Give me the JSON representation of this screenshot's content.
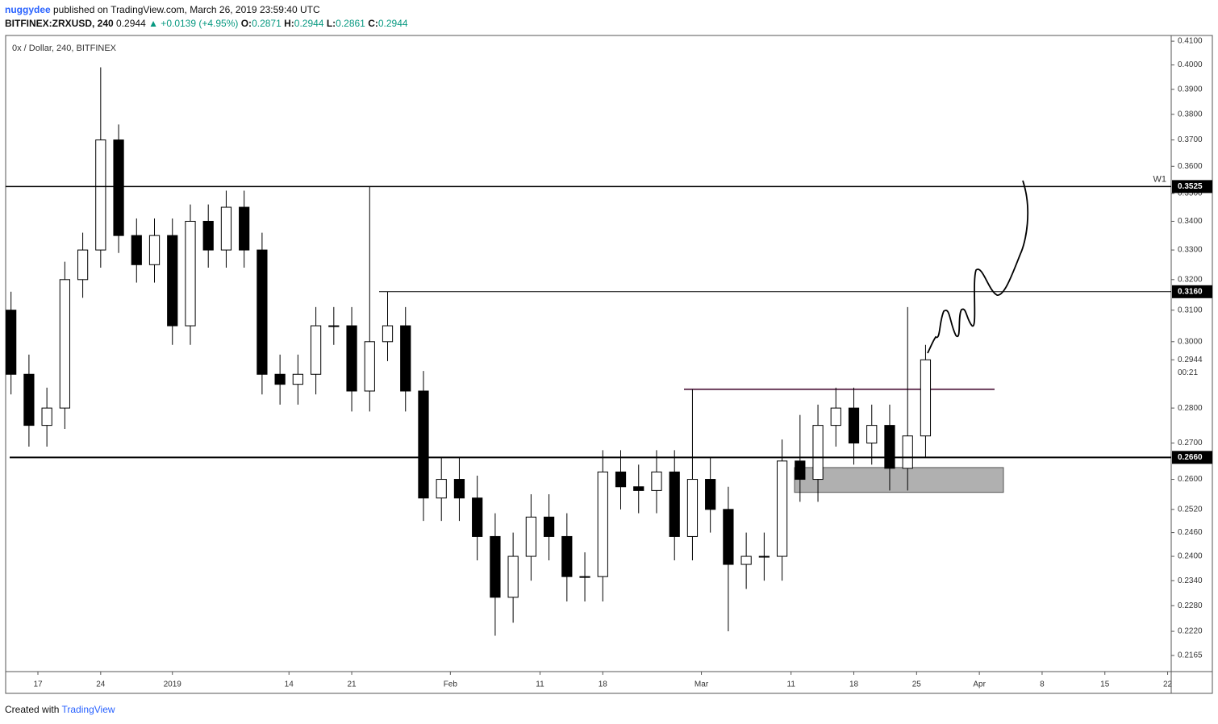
{
  "header": {
    "author": "nuggydee",
    "published": " published on TradingView.com, March 26, 2019 23:59:40 UTC",
    "symbol": "BITFINEX:ZRXUSD, 240",
    "last": "0.2944",
    "change": "▲ +0.0139 (+4.95%)",
    "o_label": "O:",
    "o": "0.2871",
    "h_label": "H:",
    "h": "0.2944",
    "l_label": "L:",
    "l": "0.2861",
    "c_label": "C:",
    "c": "0.2944"
  },
  "footer": {
    "created": "Created with",
    "brand": "TradingView"
  },
  "chart_data": {
    "type": "candlestick",
    "title": "0x / Dollar, 240, BITFINEX",
    "log_scale": true,
    "color": "#000000",
    "x": [
      -3,
      -1,
      1,
      3,
      5,
      7,
      9,
      11,
      13,
      15,
      17,
      19,
      21,
      23,
      25,
      27,
      29,
      31,
      33,
      35,
      37,
      39,
      41,
      43,
      45,
      47,
      49,
      51,
      53,
      55,
      57,
      59,
      61,
      63,
      65,
      67,
      69,
      71,
      73,
      75,
      77,
      79,
      81,
      83,
      85,
      87,
      89,
      91,
      93,
      95,
      97,
      99
    ],
    "open": [
      0.31,
      0.29,
      0.275,
      0.28,
      0.32,
      0.33,
      0.37,
      0.335,
      0.325,
      0.335,
      0.305,
      0.34,
      0.33,
      0.345,
      0.33,
      0.29,
      0.287,
      0.29,
      0.305,
      0.305,
      0.285,
      0.3,
      0.305,
      0.285,
      0.255,
      0.26,
      0.255,
      0.245,
      0.23,
      0.24,
      0.25,
      0.245,
      0.235,
      0.235,
      0.262,
      0.258,
      0.257,
      0.262,
      0.245,
      0.26,
      0.252,
      0.238,
      0.24,
      0.24,
      0.265,
      0.26,
      0.275,
      0.28,
      0.27,
      0.275,
      0.263,
      0.272
    ],
    "high": [
      0.316,
      0.296,
      0.286,
      0.326,
      0.336,
      0.399,
      0.376,
      0.341,
      0.341,
      0.341,
      0.346,
      0.346,
      0.351,
      0.351,
      0.336,
      0.296,
      0.296,
      0.311,
      0.311,
      0.311,
      0.3525,
      0.316,
      0.311,
      0.291,
      0.266,
      0.266,
      0.261,
      0.251,
      0.246,
      0.256,
      0.256,
      0.251,
      0.241,
      0.268,
      0.268,
      0.264,
      0.268,
      0.268,
      0.2855,
      0.266,
      0.258,
      0.246,
      0.246,
      0.271,
      0.278,
      0.281,
      0.286,
      0.286,
      0.281,
      0.281,
      0.311,
      0.299
    ],
    "low": [
      0.284,
      0.269,
      0.269,
      0.274,
      0.314,
      0.324,
      0.329,
      0.319,
      0.319,
      0.299,
      0.299,
      0.324,
      0.324,
      0.324,
      0.284,
      0.281,
      0.281,
      0.284,
      0.299,
      0.279,
      0.279,
      0.294,
      0.279,
      0.249,
      0.249,
      0.249,
      0.239,
      0.221,
      0.224,
      0.234,
      0.239,
      0.229,
      0.229,
      0.229,
      0.252,
      0.251,
      0.251,
      0.239,
      0.239,
      0.246,
      0.222,
      0.232,
      0.234,
      0.234,
      0.254,
      0.254,
      0.269,
      0.264,
      0.264,
      0.257,
      0.257,
      0.266
    ],
    "close": [
      0.29,
      0.275,
      0.28,
      0.32,
      0.33,
      0.37,
      0.335,
      0.325,
      0.335,
      0.305,
      0.34,
      0.33,
      0.345,
      0.33,
      0.29,
      0.287,
      0.29,
      0.305,
      0.305,
      0.285,
      0.3,
      0.305,
      0.285,
      0.255,
      0.26,
      0.255,
      0.245,
      0.23,
      0.24,
      0.25,
      0.245,
      0.235,
      0.235,
      0.262,
      0.258,
      0.257,
      0.262,
      0.245,
      0.26,
      0.252,
      0.238,
      0.24,
      0.24,
      0.265,
      0.26,
      0.275,
      0.28,
      0.27,
      0.275,
      0.263,
      0.272,
      0.2944
    ],
    "xlim": [
      -3.6,
      126.4
    ],
    "xticks": [
      {
        "value": 0,
        "label": "17"
      },
      {
        "value": 7,
        "label": "24"
      },
      {
        "value": 15,
        "label": "2019"
      },
      {
        "value": 28,
        "label": "14"
      },
      {
        "value": 35,
        "label": "21"
      },
      {
        "value": 46,
        "label": "Feb"
      },
      {
        "value": 56,
        "label": "11"
      },
      {
        "value": 63,
        "label": "18"
      },
      {
        "value": 74,
        "label": "Mar"
      },
      {
        "value": 84,
        "label": "11"
      },
      {
        "value": 91,
        "label": "18"
      },
      {
        "value": 98,
        "label": "25"
      },
      {
        "value": 105,
        "label": "Apr"
      },
      {
        "value": 112,
        "label": "8"
      },
      {
        "value": 119,
        "label": "15"
      },
      {
        "value": 126,
        "label": "22"
      }
    ],
    "ylim": [
      0.2129,
      0.4121
    ],
    "yticks": [
      {
        "value": 0.41,
        "label": "0.4100"
      },
      {
        "value": 0.4,
        "label": "0.4000"
      },
      {
        "value": 0.39,
        "label": "0.3900"
      },
      {
        "value": 0.38,
        "label": "0.3800"
      },
      {
        "value": 0.37,
        "label": "0.3700"
      },
      {
        "value": 0.36,
        "label": "0.3600"
      },
      {
        "value": 0.35,
        "label": "0.3500"
      },
      {
        "value": 0.34,
        "label": "0.3400"
      },
      {
        "value": 0.33,
        "label": "0.3300"
      },
      {
        "value": 0.32,
        "label": "0.3200"
      },
      {
        "value": 0.31,
        "label": "0.3100"
      },
      {
        "value": 0.3,
        "label": "0.3000"
      },
      {
        "value": 0.28,
        "label": "0.2800"
      },
      {
        "value": 0.27,
        "label": "0.2700"
      },
      {
        "value": 0.26,
        "label": "0.2600"
      },
      {
        "value": 0.252,
        "label": "0.2520"
      },
      {
        "value": 0.246,
        "label": "0.2460"
      },
      {
        "value": 0.24,
        "label": "0.2400"
      },
      {
        "value": 0.234,
        "label": "0.2340"
      },
      {
        "value": 0.228,
        "label": "0.2280"
      },
      {
        "value": 0.222,
        "label": "0.2220"
      },
      {
        "value": 0.2165,
        "label": "0.2165"
      }
    ],
    "levels": [
      {
        "value": 0.3525,
        "label": "0.3525"
      },
      {
        "value": 0.316,
        "label": "0.3160"
      },
      {
        "value": 0.266,
        "label": "0.2660"
      }
    ],
    "level_tag": "W1",
    "last_price": {
      "value": 0.2944,
      "label": "0.2944"
    },
    "countdown": "00:21",
    "resistance": 0.2855,
    "zone": [
      0.2565,
      0.2632
    ]
  }
}
